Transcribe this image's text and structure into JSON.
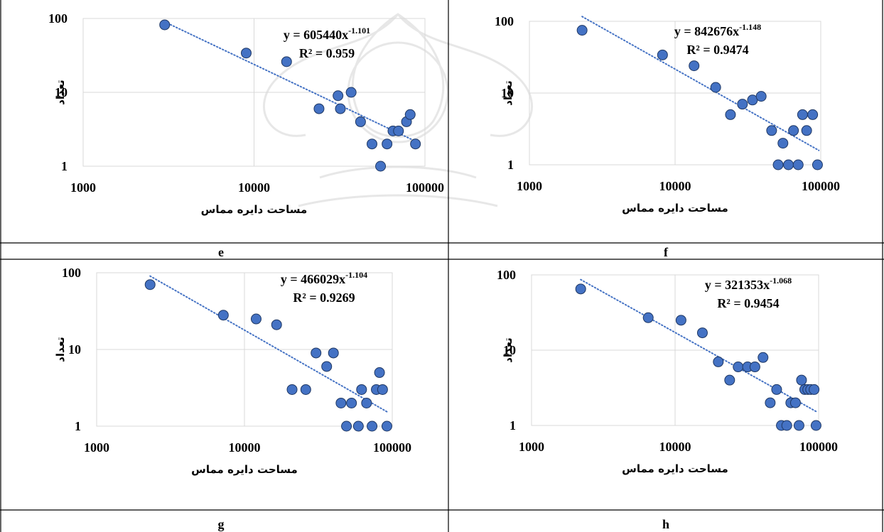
{
  "chart_data": [
    {
      "type": "scatter",
      "panel": "e",
      "xlabel": "مساحت دایره مماس",
      "ylabel": "تعداد",
      "x_scale": "log",
      "y_scale": "log",
      "xlim": [
        1000,
        100000
      ],
      "ylim": [
        1,
        100
      ],
      "x_ticks": [
        "1000",
        "10000",
        "100000"
      ],
      "y_ticks": [
        "1",
        "10",
        "100"
      ],
      "trendline": {
        "a": 605440,
        "b": -1.101,
        "x_range": [
          3000,
          90000
        ],
        "style": "dotted"
      },
      "equation": {
        "base": "y = 605440x",
        "exp": "-1.101"
      },
      "r2": "R² = 0.959",
      "points": [
        [
          3000,
          82
        ],
        [
          9000,
          34
        ],
        [
          15500,
          26
        ],
        [
          24000,
          6
        ],
        [
          31000,
          9
        ],
        [
          32000,
          6
        ],
        [
          37000,
          10
        ],
        [
          42000,
          4
        ],
        [
          49000,
          2
        ],
        [
          55000,
          1
        ],
        [
          60000,
          2
        ],
        [
          65000,
          3
        ],
        [
          70000,
          3
        ],
        [
          78000,
          4
        ],
        [
          82000,
          5
        ],
        [
          88000,
          2
        ]
      ]
    },
    {
      "type": "scatter",
      "panel": "f",
      "xlabel": "مساحت دایره مماس",
      "ylabel": "تعداد",
      "x_scale": "log",
      "y_scale": "log",
      "xlim": [
        1000,
        100000
      ],
      "ylim": [
        1,
        100
      ],
      "x_ticks": [
        "1000",
        "10000",
        "100000"
      ],
      "y_ticks": [
        "1",
        "10",
        "100"
      ],
      "trendline": {
        "a": 842676,
        "b": -1.148,
        "x_range": [
          2300,
          97000
        ],
        "style": "dotted"
      },
      "equation": {
        "base": "y = 842676x",
        "exp": "-1.148"
      },
      "r2": "R² = 0.9474",
      "points": [
        [
          2300,
          75
        ],
        [
          8200,
          34
        ],
        [
          13500,
          24
        ],
        [
          19000,
          12
        ],
        [
          24000,
          5
        ],
        [
          29000,
          7
        ],
        [
          34000,
          8
        ],
        [
          39000,
          9
        ],
        [
          46000,
          3
        ],
        [
          51000,
          1
        ],
        [
          55000,
          2
        ],
        [
          60000,
          1
        ],
        [
          65000,
          3
        ],
        [
          70000,
          1
        ],
        [
          75000,
          5
        ],
        [
          80000,
          3
        ],
        [
          88000,
          5
        ],
        [
          95000,
          1
        ]
      ]
    },
    {
      "type": "scatter",
      "panel": "g",
      "xlabel": "مساحت دایره مماس",
      "ylabel": "تعداد",
      "x_scale": "log",
      "y_scale": "log",
      "xlim": [
        1000,
        100000
      ],
      "ylim": [
        1,
        100
      ],
      "x_ticks": [
        "1000",
        "10000",
        "100000"
      ],
      "y_ticks": [
        "1",
        "10",
        "100"
      ],
      "trendline": {
        "a": 466029,
        "b": -1.104,
        "x_range": [
          2300,
          92000
        ],
        "style": "dotted"
      },
      "equation": {
        "base": "y = 466029x",
        "exp": "-1.104"
      },
      "r2": "R² = 0.9269",
      "points": [
        [
          2300,
          70
        ],
        [
          7200,
          28
        ],
        [
          12000,
          25
        ],
        [
          16500,
          21
        ],
        [
          21000,
          3
        ],
        [
          26000,
          3
        ],
        [
          30500,
          9
        ],
        [
          36000,
          6
        ],
        [
          40000,
          9
        ],
        [
          45000,
          2
        ],
        [
          49000,
          1
        ],
        [
          53000,
          2
        ],
        [
          59000,
          1
        ],
        [
          62000,
          3
        ],
        [
          67000,
          2
        ],
        [
          73000,
          1
        ],
        [
          78000,
          3
        ],
        [
          82000,
          5
        ],
        [
          86000,
          3
        ],
        [
          92000,
          1
        ]
      ]
    },
    {
      "type": "scatter",
      "panel": "h",
      "xlabel": "مساحت دایره مماس",
      "ylabel": "تعداد",
      "x_scale": "log",
      "y_scale": "log",
      "xlim": [
        1000,
        100000
      ],
      "ylim": [
        1,
        100
      ],
      "x_ticks": [
        "1000",
        "10000",
        "100000"
      ],
      "y_ticks": [
        "1",
        "10",
        "100"
      ],
      "trendline": {
        "a": 321353,
        "b": -1.068,
        "x_range": [
          2200,
          96000
        ],
        "style": "dotted"
      },
      "equation": {
        "base": "y = 321353x",
        "exp": "-1.068"
      },
      "r2": "R² = 0.9454",
      "points": [
        [
          2200,
          65
        ],
        [
          6500,
          27
        ],
        [
          11000,
          25
        ],
        [
          15500,
          17
        ],
        [
          20000,
          7
        ],
        [
          24000,
          4
        ],
        [
          27500,
          6
        ],
        [
          32000,
          6
        ],
        [
          36000,
          6
        ],
        [
          41000,
          8
        ],
        [
          46000,
          2
        ],
        [
          51000,
          3
        ],
        [
          55000,
          1
        ],
        [
          60000,
          1
        ],
        [
          64000,
          2
        ],
        [
          69000,
          2
        ],
        [
          73000,
          1
        ],
        [
          76000,
          4
        ],
        [
          80000,
          3
        ],
        [
          84000,
          3
        ],
        [
          88000,
          3
        ],
        [
          93000,
          3
        ],
        [
          96000,
          1
        ]
      ]
    }
  ],
  "captions": [
    "e",
    "f",
    "g",
    "h"
  ],
  "colors": {
    "marker_fill": "#4472C4",
    "marker_stroke": "#1F3864",
    "trendline": "#4472C4",
    "gridline": "#D9D9D9",
    "border": "#000000"
  }
}
